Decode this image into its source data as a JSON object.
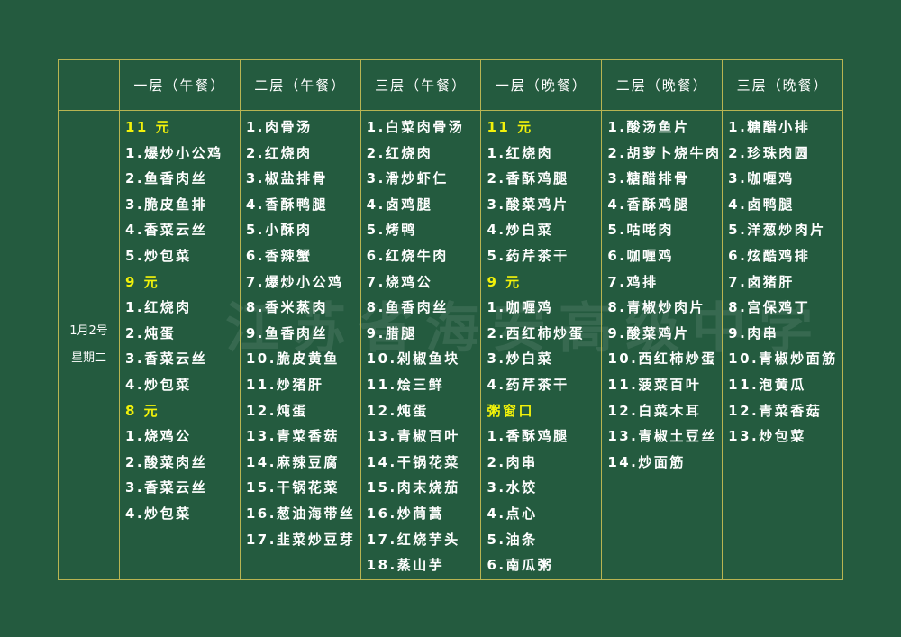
{
  "header": [
    "",
    "一层（午餐）",
    "二层（午餐）",
    "三层（午餐）",
    "一层（晚餐）",
    "二层（晚餐）",
    "三层（晚餐）"
  ],
  "date": {
    "day": "1月2号",
    "weekday": "星期二"
  },
  "columns": [
    [
      {
        "t": "11 元",
        "h": true
      },
      {
        "t": "1.爆炒小公鸡"
      },
      {
        "t": "2.鱼香肉丝"
      },
      {
        "t": "3.脆皮鱼排"
      },
      {
        "t": "4.香菜云丝"
      },
      {
        "t": "5.炒包菜"
      },
      {
        "t": "9 元",
        "h": true
      },
      {
        "t": "1.红烧肉"
      },
      {
        "t": "2.炖蛋"
      },
      {
        "t": "3.香菜云丝"
      },
      {
        "t": "4.炒包菜"
      },
      {
        "t": "8 元",
        "h": true
      },
      {
        "t": "1.烧鸡公"
      },
      {
        "t": "2.酸菜肉丝"
      },
      {
        "t": "3.香菜云丝"
      },
      {
        "t": "4.炒包菜"
      }
    ],
    [
      {
        "t": "1.肉骨汤"
      },
      {
        "t": "2.红烧肉"
      },
      {
        "t": "3.椒盐排骨"
      },
      {
        "t": "4.香酥鸭腿"
      },
      {
        "t": "5.小酥肉"
      },
      {
        "t": "6.香辣蟹"
      },
      {
        "t": "7.爆炒小公鸡"
      },
      {
        "t": "8.香米蒸肉"
      },
      {
        "t": "9.鱼香肉丝"
      },
      {
        "t": "10.脆皮黄鱼"
      },
      {
        "t": "11.炒猪肝"
      },
      {
        "t": "12.炖蛋"
      },
      {
        "t": "13.青菜香菇"
      },
      {
        "t": "14.麻辣豆腐"
      },
      {
        "t": "15.干锅花菜"
      },
      {
        "t": "16.葱油海带丝"
      },
      {
        "t": "17.韭菜炒豆芽"
      }
    ],
    [
      {
        "t": "1.白菜肉骨汤"
      },
      {
        "t": "2.红烧肉"
      },
      {
        "t": "3.滑炒虾仁"
      },
      {
        "t": "4.卤鸡腿"
      },
      {
        "t": "5.烤鸭"
      },
      {
        "t": "6.红烧牛肉"
      },
      {
        "t": "7.烧鸡公"
      },
      {
        "t": "8.鱼香肉丝"
      },
      {
        "t": "9.腊腿"
      },
      {
        "t": "10.剁椒鱼块"
      },
      {
        "t": "11.烩三鲜"
      },
      {
        "t": "12.炖蛋"
      },
      {
        "t": "13.青椒百叶"
      },
      {
        "t": "14.干锅花菜"
      },
      {
        "t": "15.肉末烧茄"
      },
      {
        "t": "16.炒茼蒿"
      },
      {
        "t": "17.红烧芋头"
      },
      {
        "t": "18.蒸山芋"
      }
    ],
    [
      {
        "t": "11 元",
        "h": true
      },
      {
        "t": "1.红烧肉"
      },
      {
        "t": "2.香酥鸡腿"
      },
      {
        "t": "3.酸菜鸡片"
      },
      {
        "t": "4.炒白菜"
      },
      {
        "t": "5.药芹茶干"
      },
      {
        "t": "9 元",
        "h": true
      },
      {
        "t": "1.咖喱鸡"
      },
      {
        "t": "2.西红柿炒蛋"
      },
      {
        "t": "3.炒白菜"
      },
      {
        "t": "4.药芹茶干"
      },
      {
        "t": "粥窗口",
        "h": true
      },
      {
        "t": "1.香酥鸡腿"
      },
      {
        "t": "2.肉串"
      },
      {
        "t": "3.水饺"
      },
      {
        "t": "4.点心"
      },
      {
        "t": "5.油条"
      },
      {
        "t": "6.南瓜粥"
      }
    ],
    [
      {
        "t": "1.酸汤鱼片"
      },
      {
        "t": "2.胡萝卜烧牛肉"
      },
      {
        "t": "3.糖醋排骨"
      },
      {
        "t": "4.香酥鸡腿"
      },
      {
        "t": "5.咕咾肉"
      },
      {
        "t": "6.咖喱鸡"
      },
      {
        "t": "7.鸡排"
      },
      {
        "t": "8.青椒炒肉片"
      },
      {
        "t": "9.酸菜鸡片"
      },
      {
        "t": "10.西红柿炒蛋"
      },
      {
        "t": "11.菠菜百叶"
      },
      {
        "t": "12.白菜木耳"
      },
      {
        "t": "13.青椒土豆丝"
      },
      {
        "t": "14.炒面筋"
      }
    ],
    [
      {
        "t": "1.糖醋小排"
      },
      {
        "t": "2.珍珠肉圆"
      },
      {
        "t": "3.咖喱鸡"
      },
      {
        "t": "4.卤鸭腿"
      },
      {
        "t": "5.洋葱炒肉片"
      },
      {
        "t": "6.炫酷鸡排"
      },
      {
        "t": "7.卤猪肝"
      },
      {
        "t": "8.宫保鸡丁"
      },
      {
        "t": "9.肉串"
      },
      {
        "t": "10.青椒炒面筋"
      },
      {
        "t": "11.泡黄瓜"
      },
      {
        "t": "12.青菜香菇"
      },
      {
        "t": "13.炒包菜"
      }
    ]
  ],
  "watermark": "江苏省海安高级中学",
  "colors": {
    "background": "#245b3f",
    "grid": "#b8b452",
    "price_heading": "#f2f20a",
    "text": "#ffffff"
  }
}
